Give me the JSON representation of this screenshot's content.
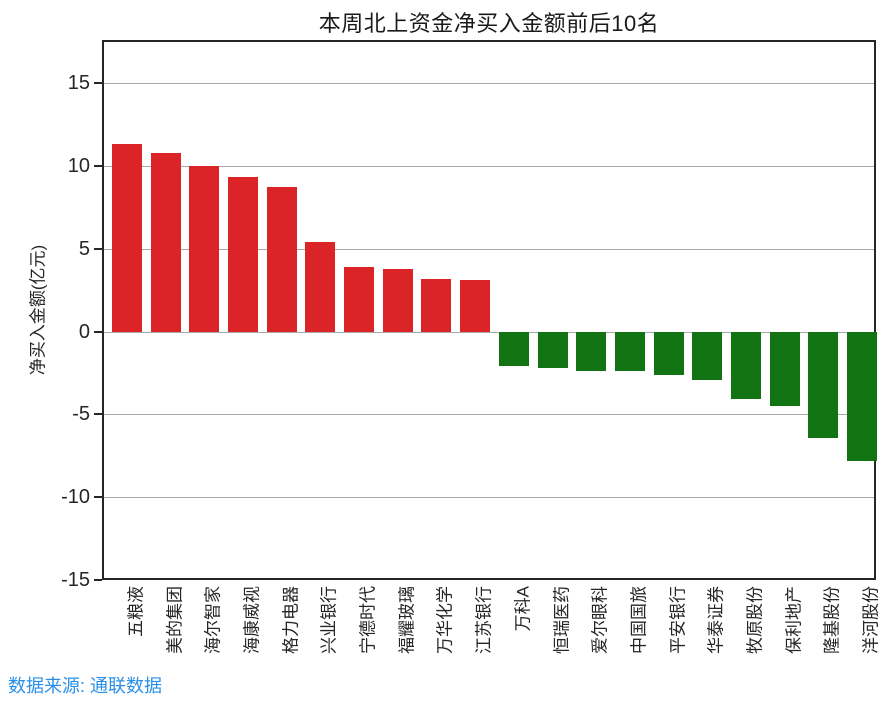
{
  "figure": {
    "title": "本周北上资金净买入金额前后10名",
    "y_axis_label": "净买入金额(亿元)",
    "source_note": "数据来源: 通联数据"
  },
  "colors": {
    "positive_bar": "#da2428",
    "negative_bar": "#117311",
    "source_note_text": "#2a8fe8",
    "grid_line": "#a9a9a9",
    "axis_spine": "#262626",
    "text": "#262626",
    "title_text": "#1a1a1a"
  },
  "chart_data": {
    "type": "bar",
    "title": "本周北上资金净买入金额前后10名",
    "xlabel": "",
    "ylabel": "净买入金额(亿元)",
    "categories": [
      "五粮液",
      "美的集团",
      "海尔智家",
      "海康威视",
      "格力电器",
      "兴业银行",
      "宁德时代",
      "福耀玻璃",
      "万华化学",
      "江苏银行",
      "万科A",
      "恒瑞医药",
      "爱尔眼科",
      "中国国旅",
      "平安银行",
      "华泰证券",
      "牧原股份",
      "保利地产",
      "隆基股份",
      "洋河股份"
    ],
    "values": [
      11.3,
      10.8,
      10.0,
      9.3,
      8.7,
      5.4,
      3.9,
      3.8,
      3.2,
      3.1,
      -2.1,
      -2.2,
      -2.4,
      -2.4,
      -2.6,
      -2.9,
      -4.1,
      -4.5,
      -6.4,
      -7.8
    ],
    "yticks": [
      15,
      10,
      5,
      0,
      -5,
      -10,
      -15
    ],
    "ylim": [
      -15,
      17.6
    ],
    "grid": true,
    "legend": "none",
    "bar_color_rule": "positive values red, negative values green",
    "source_note": "数据来源: 通联数据"
  }
}
